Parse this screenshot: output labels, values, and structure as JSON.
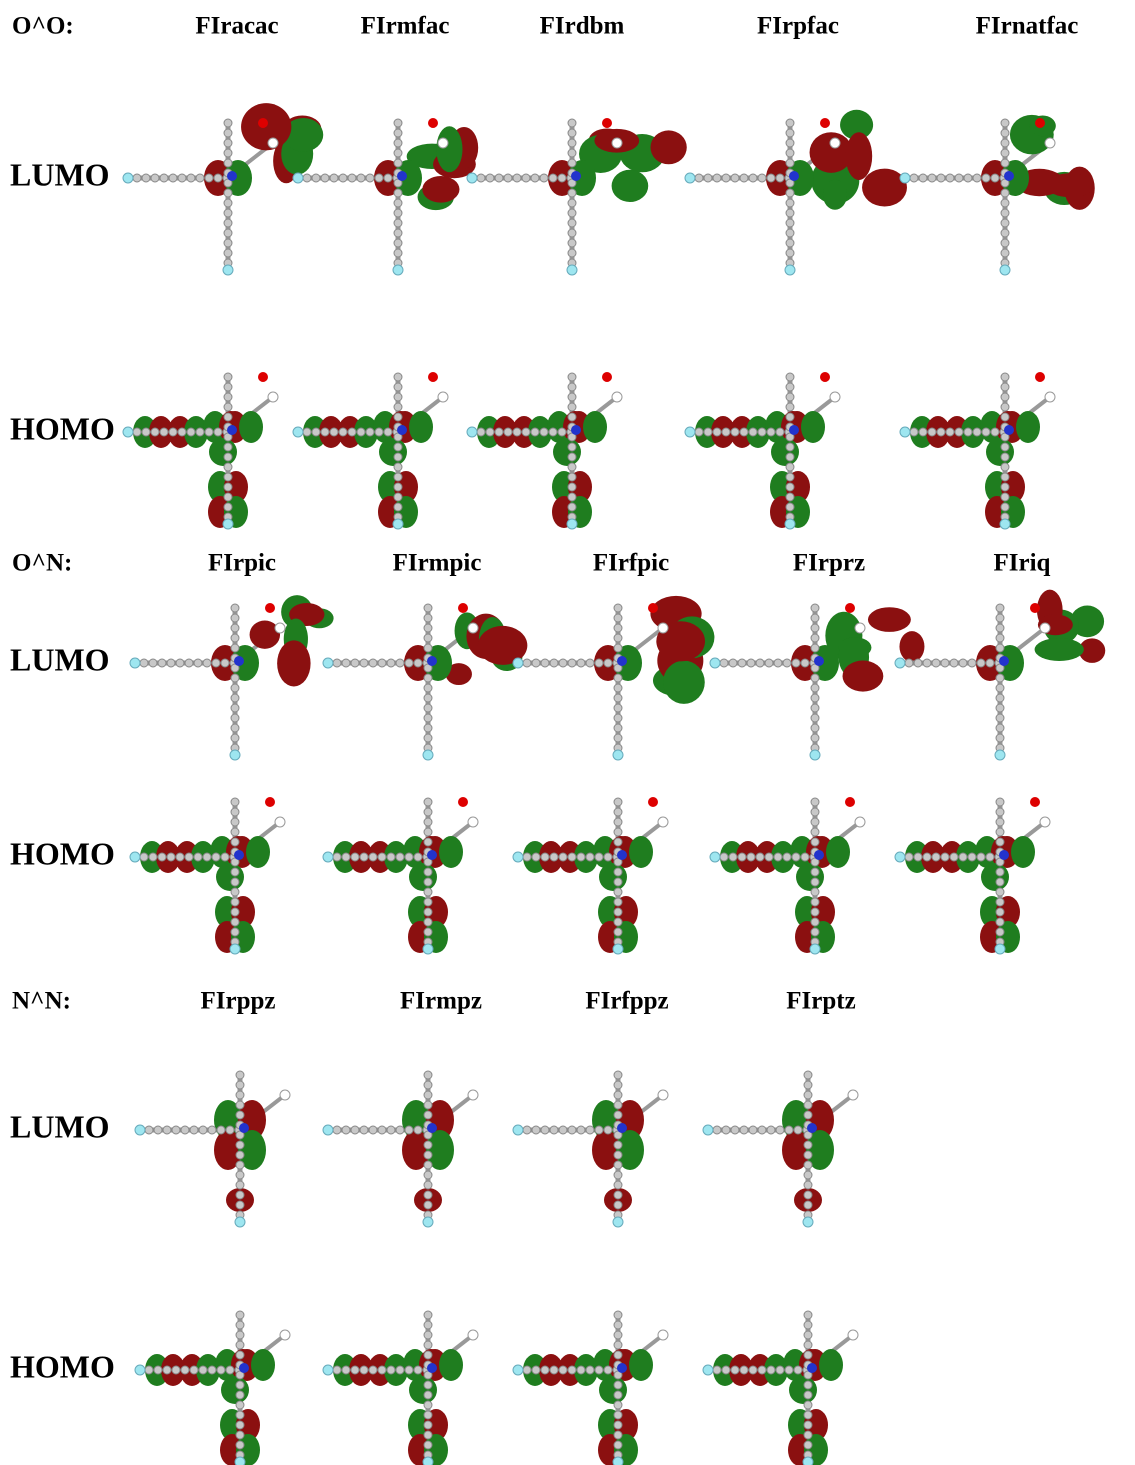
{
  "groups": [
    {
      "label": "O^O:",
      "compounds": [
        "FIracac",
        "FIrmfac",
        "FIrdbm",
        "FIrpfac",
        "FIrnatfac"
      ],
      "rows": [
        "LUMO",
        "HOMO"
      ]
    },
    {
      "label": "O^N:",
      "compounds": [
        "FIrpic",
        "FIrmpic",
        "FIrfpic",
        "FIrprz",
        "FIriq"
      ],
      "rows": [
        "LUMO",
        "HOMO"
      ]
    },
    {
      "label": "N^N:",
      "compounds": [
        "FIrppz",
        "FIrmpz",
        "FIrfppz",
        "FIrptz"
      ],
      "rows": [
        "LUMO",
        "HOMO"
      ]
    }
  ]
}
